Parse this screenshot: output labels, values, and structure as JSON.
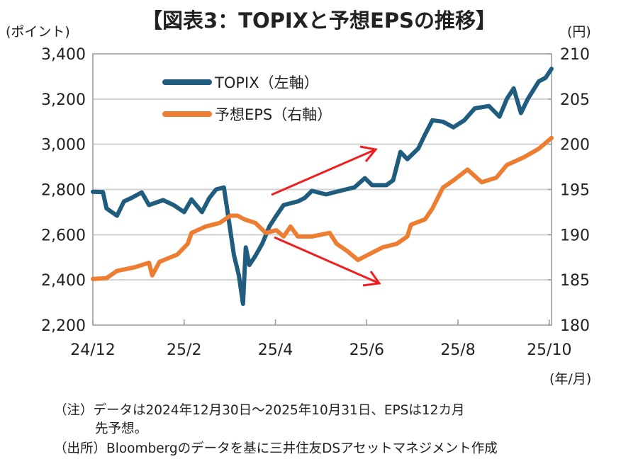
{
  "chart_data": {
    "type": "line",
    "title": "【図表3：TOPIXと予想EPSの推移】",
    "ylabel_left": "(ポイント)",
    "ylabel_right": "(円)",
    "xlabel": "(年/月)",
    "x_unit": "months since 2024/12/30",
    "xlim": [
      0,
      10.05
    ],
    "ylim_left": [
      2200,
      3400
    ],
    "ylim_right": [
      180,
      210
    ],
    "x_ticks": [
      {
        "x": 0,
        "label": "24/12"
      },
      {
        "x": 2,
        "label": "25/2"
      },
      {
        "x": 4,
        "label": "25/4"
      },
      {
        "x": 6,
        "label": "25/6"
      },
      {
        "x": 8,
        "label": "25/8"
      },
      {
        "x": 10,
        "label": "25/10"
      }
    ],
    "y_ticks_left": [
      "2,200",
      "2,400",
      "2,600",
      "2,800",
      "3,000",
      "3,200",
      "3,400"
    ],
    "y_ticks_right": [
      "180",
      "185",
      "190",
      "195",
      "200",
      "205",
      "210"
    ],
    "grid": true,
    "legend_position": "top-center",
    "series": [
      {
        "name": "TOPIX（左軸）",
        "axis": "left",
        "color": "#1F5C7E",
        "x": [
          0,
          0.22,
          0.3,
          0.53,
          0.68,
          0.84,
          1.07,
          1.23,
          1.54,
          1.77,
          2.0,
          2.16,
          2.39,
          2.55,
          2.7,
          2.87,
          2.93,
          3.09,
          3.2,
          3.29,
          3.35,
          3.43,
          3.56,
          3.71,
          3.87,
          4.02,
          4.18,
          4.49,
          4.64,
          4.8,
          5.11,
          5.42,
          5.73,
          5.96,
          6.12,
          6.43,
          6.58,
          6.74,
          6.89,
          7.13,
          7.28,
          7.44,
          7.67,
          7.9,
          8.14,
          8.37,
          8.68,
          8.91,
          9.07,
          9.22,
          9.38,
          9.53,
          9.77,
          9.92,
          10.05
        ],
        "y": [
          2790,
          2788,
          2716,
          2684,
          2747,
          2762,
          2787,
          2731,
          2753,
          2731,
          2700,
          2756,
          2700,
          2762,
          2800,
          2809,
          2731,
          2512,
          2419,
          2294,
          2544,
          2466,
          2506,
          2559,
          2637,
          2684,
          2731,
          2747,
          2762,
          2794,
          2778,
          2794,
          2809,
          2850,
          2819,
          2819,
          2841,
          2966,
          2934,
          2981,
          3044,
          3106,
          3100,
          3075,
          3106,
          3159,
          3169,
          3122,
          3200,
          3247,
          3138,
          3200,
          3278,
          3294,
          3334
        ]
      },
      {
        "name": "予想EPS（右軸）",
        "axis": "right",
        "color": "#ED7D31",
        "x": [
          0,
          0.3,
          0.53,
          0.92,
          1.23,
          1.3,
          1.46,
          1.85,
          2.08,
          2.16,
          2.47,
          2.78,
          3.01,
          3.17,
          3.32,
          3.56,
          3.79,
          4.02,
          4.18,
          4.33,
          4.49,
          4.8,
          5.19,
          5.34,
          5.57,
          5.81,
          6.04,
          6.35,
          6.66,
          6.89,
          6.97,
          7.28,
          7.44,
          7.67,
          7.9,
          8.21,
          8.52,
          8.84,
          9.07,
          9.46,
          9.77,
          10.05
        ],
        "y": [
          185.1,
          185.2,
          186.0,
          186.4,
          186.9,
          185.5,
          187.0,
          187.8,
          189.0,
          190.2,
          190.9,
          191.3,
          192.1,
          192.1,
          191.7,
          191.3,
          190.2,
          190.5,
          189.8,
          190.9,
          189.8,
          189.8,
          190.2,
          189.0,
          188.2,
          187.2,
          187.8,
          188.6,
          189.0,
          189.8,
          191.1,
          191.7,
          192.9,
          195.2,
          196.0,
          197.2,
          195.8,
          196.3,
          197.7,
          198.6,
          199.5,
          200.7
        ]
      }
    ]
  },
  "notes": {
    "line1": "（注）データは2024年12月30日～2025年10月31日、EPSは12カ月",
    "line2": "先予想。",
    "line3": "（出所）Bloombergのデータを基に三井住友DSアセットマネジメント作成"
  }
}
